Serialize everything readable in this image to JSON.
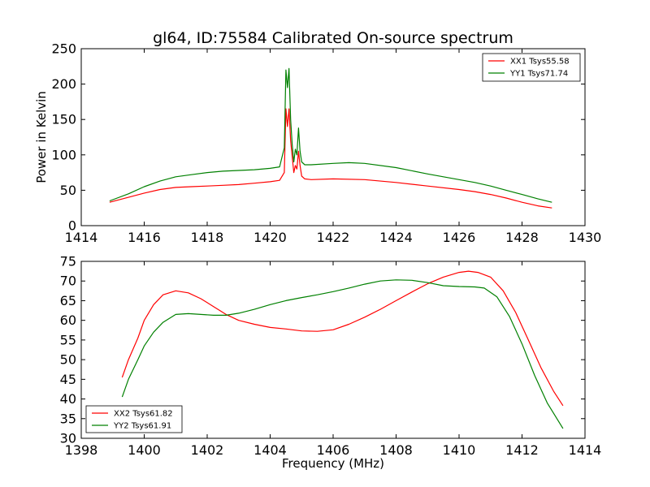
{
  "chart_data": [
    {
      "type": "line",
      "title": "gl64, ID:75584 Calibrated On-source spectrum",
      "xlabel": "",
      "ylabel": "Power in Kelvin",
      "xlim": [
        1414,
        1430
      ],
      "ylim": [
        0,
        250
      ],
      "xticks": [
        1414,
        1416,
        1418,
        1420,
        1422,
        1424,
        1426,
        1428,
        1430
      ],
      "yticks": [
        0,
        50,
        100,
        150,
        200,
        250
      ],
      "legend_position": "top-right",
      "grid": false,
      "series": [
        {
          "name": "XX1 Tsys55.58",
          "color": "#ff0000",
          "x": [
            1414.9,
            1415.5,
            1416.0,
            1416.5,
            1417.0,
            1417.5,
            1418.0,
            1418.5,
            1419.0,
            1419.5,
            1420.0,
            1420.3,
            1420.45,
            1420.5,
            1420.55,
            1420.6,
            1420.65,
            1420.7,
            1420.75,
            1420.8,
            1420.85,
            1420.9,
            1420.95,
            1421.0,
            1421.1,
            1421.3,
            1422.0,
            1423.0,
            1424.0,
            1425.0,
            1426.0,
            1426.5,
            1427.0,
            1427.5,
            1428.0,
            1428.5,
            1428.95
          ],
          "y": [
            33,
            40,
            46,
            51,
            54,
            55,
            56,
            57,
            58,
            60,
            62,
            64,
            75,
            165,
            140,
            165,
            120,
            98,
            75,
            85,
            80,
            105,
            85,
            70,
            66,
            65,
            66,
            65,
            61,
            56,
            51,
            48,
            44,
            39,
            33,
            28,
            25
          ]
        },
        {
          "name": "YY1 Tsys71.74",
          "color": "#008000",
          "x": [
            1414.9,
            1415.5,
            1416.0,
            1416.5,
            1417.0,
            1417.5,
            1418.0,
            1418.5,
            1419.0,
            1419.5,
            1420.0,
            1420.3,
            1420.45,
            1420.5,
            1420.55,
            1420.6,
            1420.65,
            1420.7,
            1420.75,
            1420.8,
            1420.85,
            1420.9,
            1420.95,
            1421.0,
            1421.1,
            1421.3,
            1422.0,
            1422.5,
            1423.0,
            1424.0,
            1425.0,
            1426.0,
            1426.5,
            1427.0,
            1427.5,
            1428.0,
            1428.5,
            1428.95
          ],
          "y": [
            35,
            45,
            55,
            63,
            69,
            72,
            75,
            77,
            78,
            79,
            81,
            83,
            110,
            220,
            195,
            222,
            150,
            115,
            90,
            108,
            100,
            138,
            105,
            90,
            86,
            86,
            88,
            89,
            88,
            82,
            73,
            65,
            61,
            56,
            50,
            44,
            38,
            33
          ]
        }
      ]
    },
    {
      "type": "line",
      "title": "",
      "xlabel": "Frequency (MHz)",
      "ylabel": "",
      "xlim": [
        1398,
        1414
      ],
      "ylim": [
        30,
        75
      ],
      "xticks": [
        1398,
        1400,
        1402,
        1404,
        1406,
        1408,
        1410,
        1412,
        1414
      ],
      "yticks": [
        30,
        35,
        40,
        45,
        50,
        55,
        60,
        65,
        70,
        75
      ],
      "legend_position": "bottom-left",
      "grid": false,
      "series": [
        {
          "name": "XX2 Tsys61.82",
          "color": "#ff0000",
          "x": [
            1399.3,
            1399.5,
            1399.8,
            1400.0,
            1400.3,
            1400.6,
            1401.0,
            1401.4,
            1401.8,
            1402.2,
            1402.6,
            1403.0,
            1403.5,
            1404.0,
            1404.5,
            1405.0,
            1405.5,
            1406.0,
            1406.5,
            1407.0,
            1407.5,
            1408.0,
            1408.5,
            1409.0,
            1409.5,
            1410.0,
            1410.3,
            1410.6,
            1411.0,
            1411.4,
            1411.8,
            1412.2,
            1412.6,
            1413.0,
            1413.3
          ],
          "y": [
            45.5,
            50,
            55.5,
            60,
            64,
            66.5,
            67.5,
            67,
            65.5,
            63.5,
            61.5,
            60,
            59,
            58.2,
            57.8,
            57.3,
            57.2,
            57.6,
            59,
            60.8,
            62.8,
            65,
            67.2,
            69.3,
            71,
            72.2,
            72.5,
            72.2,
            71,
            67.5,
            62,
            55,
            48,
            42,
            38.3
          ]
        },
        {
          "name": "YY2 Tsys61.91",
          "color": "#008000",
          "x": [
            1399.3,
            1399.5,
            1399.8,
            1400.0,
            1400.3,
            1400.6,
            1401.0,
            1401.4,
            1401.8,
            1402.2,
            1402.6,
            1403.0,
            1403.5,
            1404.0,
            1404.5,
            1405.0,
            1405.5,
            1406.0,
            1406.5,
            1407.0,
            1407.5,
            1408.0,
            1408.5,
            1409.0,
            1409.5,
            1410.0,
            1410.5,
            1410.8,
            1411.2,
            1411.6,
            1412.0,
            1412.4,
            1412.8,
            1413.3
          ],
          "y": [
            40.5,
            45,
            50,
            53.5,
            57,
            59.5,
            61.5,
            61.7,
            61.5,
            61.3,
            61.3,
            61.8,
            62.8,
            64,
            65,
            65.8,
            66.5,
            67.3,
            68.2,
            69.2,
            70,
            70.3,
            70.2,
            69.6,
            68.8,
            68.6,
            68.5,
            68.2,
            66,
            61,
            54,
            46,
            39,
            32.5
          ]
        }
      ]
    }
  ]
}
